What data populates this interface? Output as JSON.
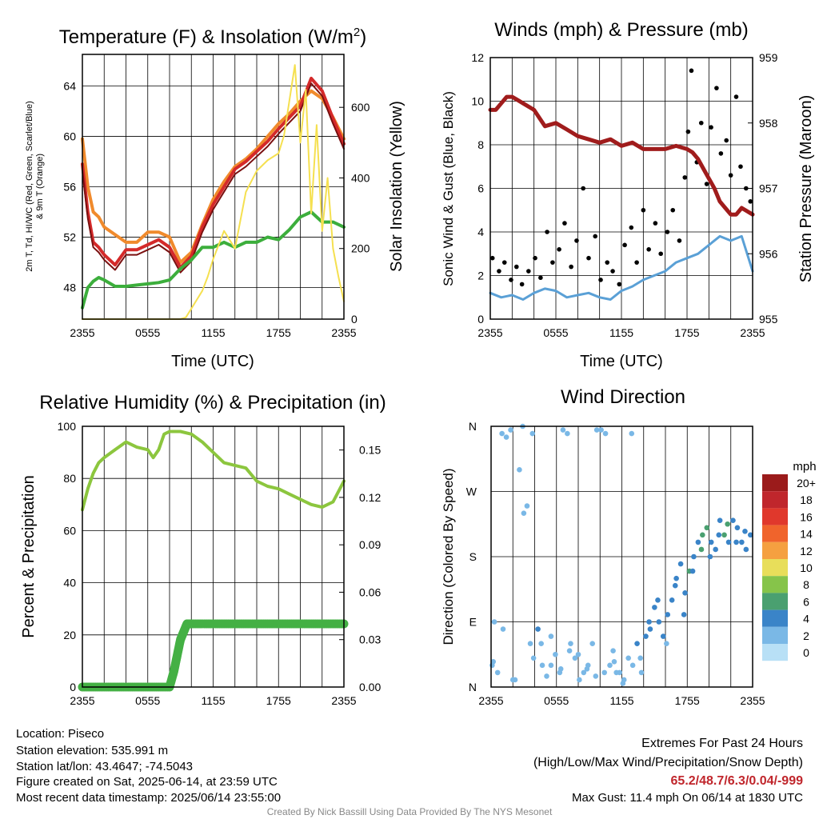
{
  "colors": {
    "temp": "#d42a2a",
    "dewpoint": "#3cae3c",
    "heat_index": "#7a1010",
    "temp9m": "#f08a2c",
    "insolation": "#f5e050",
    "wind": "#5aa0d6",
    "gust": "#000000",
    "pressure": "#a01c1c",
    "rh": "#8cc63e",
    "precip": "#44b044",
    "extremes": "#c0262c",
    "credit": "#888888"
  },
  "footer": {
    "location": "Location: Piseco",
    "elevation": "Station elevation: 535.991 m",
    "latlon": "Station lat/lon: 43.4647; -74.5043",
    "created": "Figure created on Sat, 2025-06-14, at 23:59 UTC",
    "recent": "Most recent data timestamp: 2025/06/14 23:55:00",
    "extremes_title": "Extremes For Past 24 Hours",
    "extremes_sub": "(High/Low/Max Wind/Precipitation/Snow Depth)",
    "extremes_values": "65.2/48.7/6.3/0.04/-999",
    "max_gust": "Max Gust: 11.4 mph On 06/14 at 1830 UTC",
    "credit": "Created By Nick Bassill Using Data Provided By The NYS Mesonet"
  },
  "chart_data": [
    {
      "type": "line",
      "title": "Temperature (F) & Insolation (W/m2)",
      "title_main": "Temperature (F) & Insolation (W/m",
      "title_sup": "2",
      "title_end": ")",
      "xlabel": "Time (UTC)",
      "ylabel_line1": "2m T, Td, HI/WC (Red, Green, Scarlet/Blue)",
      "ylabel_line2": "& 9m T (Orange)",
      "y2label": "Solar Insolation (Yellow)",
      "x_ticks": [
        "2355",
        "0555",
        "1155",
        "1755",
        "2355"
      ],
      "ylim": [
        45.5,
        66.5
      ],
      "y_ticks": [
        48,
        52,
        56,
        60,
        64
      ],
      "y2lim": [
        0,
        750
      ],
      "y2_ticks": [
        0,
        200,
        400,
        600
      ],
      "grid": true,
      "series": [
        {
          "key": "temp9m",
          "axis": "y",
          "x": [
            0,
            0.5,
            1,
            1.5,
            2,
            3,
            4,
            5,
            6,
            7,
            8,
            9,
            10,
            11,
            12,
            13,
            14,
            15,
            16,
            17,
            18,
            19,
            20,
            21,
            22,
            23,
            24
          ],
          "values": [
            59.8,
            56,
            54,
            53.6,
            52.8,
            52.2,
            51.6,
            51.6,
            52.4,
            52.4,
            52,
            50,
            50.8,
            53,
            55,
            56.4,
            57.6,
            58.2,
            59,
            60,
            61,
            61.8,
            62.8,
            63.6,
            63,
            61.5,
            59.8
          ]
        },
        {
          "key": "temp",
          "axis": "y",
          "x": [
            0,
            0.5,
            1,
            1.5,
            2,
            3,
            4,
            5,
            6,
            7,
            8,
            9,
            10,
            11,
            12,
            13,
            14,
            15,
            16,
            17,
            18,
            19,
            20,
            21,
            22,
            23,
            24
          ],
          "values": [
            57.8,
            54,
            51.6,
            51.2,
            50.6,
            49.8,
            51,
            51,
            51.4,
            51.8,
            51.2,
            49.6,
            50.5,
            52.8,
            54.6,
            56,
            57.4,
            58,
            58.8,
            59.6,
            60.6,
            61.5,
            62.4,
            64.6,
            63.6,
            61.4,
            59.4
          ]
        },
        {
          "key": "heat_index",
          "axis": "y",
          "x": [
            0,
            0.5,
            1,
            1.5,
            2,
            3,
            4,
            5,
            6,
            7,
            8,
            9,
            10,
            11,
            12,
            13,
            14,
            15,
            16,
            17,
            18,
            19,
            20,
            21,
            22,
            23,
            24
          ],
          "values": [
            57.3,
            53.5,
            51.2,
            50.8,
            50.2,
            49.4,
            50.6,
            50.6,
            51,
            51.4,
            50.8,
            49.2,
            50.1,
            52.4,
            54.2,
            55.6,
            57,
            57.6,
            58.4,
            59.2,
            60.2,
            61.1,
            62,
            64.2,
            63.2,
            61,
            59
          ]
        },
        {
          "key": "dewpoint",
          "axis": "y",
          "x": [
            0,
            0.5,
            1,
            1.5,
            2,
            3,
            4,
            5,
            6,
            7,
            8,
            9,
            10,
            11,
            12,
            13,
            14,
            15,
            16,
            17,
            18,
            19,
            20,
            21,
            22,
            23,
            24
          ],
          "values": [
            46.4,
            48,
            48.5,
            48.8,
            48.6,
            48.1,
            48.1,
            48.2,
            48.3,
            48.4,
            48.6,
            49.5,
            50.2,
            51.2,
            51.2,
            51.6,
            51.2,
            51.6,
            51.6,
            52,
            51.8,
            52.6,
            53.6,
            54,
            53.2,
            53.2,
            52.8
          ]
        },
        {
          "key": "insolation",
          "axis": "y2",
          "x": [
            0,
            2,
            4,
            6,
            8,
            9,
            9.5,
            10,
            11,
            11.5,
            12,
            13,
            14,
            15,
            16,
            17,
            18,
            18.5,
            19,
            19.5,
            20,
            20.5,
            21,
            21.5,
            22,
            22.5,
            23,
            23.5,
            24
          ],
          "values": [
            0,
            0,
            0,
            0,
            0,
            0,
            5,
            30,
            80,
            120,
            170,
            250,
            200,
            360,
            420,
            450,
            470,
            520,
            620,
            720,
            500,
            650,
            300,
            550,
            250,
            400,
            200,
            120,
            50
          ]
        }
      ]
    },
    {
      "type": "line",
      "title": "Winds (mph) & Pressure (mb)",
      "xlabel": "Time (UTC)",
      "ylabel": "Sonic Wind & Gust (Blue, Black)",
      "y2label": "Station Pressure (Maroon)",
      "x_ticks": [
        "2355",
        "0555",
        "1155",
        "1755",
        "2355"
      ],
      "ylim": [
        0,
        12
      ],
      "y_ticks": [
        0,
        2,
        4,
        6,
        8,
        10,
        12
      ],
      "y2lim": [
        955,
        959
      ],
      "y2_ticks": [
        955,
        956,
        957,
        958,
        959
      ],
      "grid": true,
      "series": [
        {
          "key": "wind",
          "axis": "y",
          "x": [
            0,
            1,
            2,
            3,
            4,
            5,
            6,
            7,
            8,
            9,
            10,
            11,
            12,
            13,
            14,
            15,
            16,
            17,
            18,
            19,
            20,
            21,
            22,
            23,
            24
          ],
          "values": [
            1.2,
            1.0,
            1.1,
            0.9,
            1.2,
            1.4,
            1.3,
            1.0,
            1.1,
            1.2,
            1.0,
            0.9,
            1.3,
            1.5,
            1.8,
            2.0,
            2.2,
            2.6,
            2.8,
            3.0,
            3.4,
            3.8,
            3.6,
            3.8,
            2.2
          ]
        },
        {
          "key": "gust",
          "axis": "y",
          "type": "scatter",
          "x": [
            0.2,
            0.8,
            1.3,
            1.9,
            2.4,
            2.9,
            3.5,
            4.1,
            4.6,
            5.2,
            5.7,
            6.3,
            6.8,
            7.4,
            7.9,
            8.5,
            9.0,
            9.6,
            10.1,
            10.7,
            11.2,
            11.8,
            12.3,
            12.9,
            13.4,
            14.0,
            14.5,
            15.1,
            15.6,
            16.2,
            16.7,
            17.3,
            17.8,
            18.1,
            18.4,
            18.9,
            19.3,
            19.8,
            20.2,
            20.7,
            21.1,
            21.6,
            22.0,
            22.5,
            22.9,
            23.4,
            23.8
          ],
          "values": [
            2.8,
            2.2,
            2.6,
            1.8,
            2.4,
            1.6,
            2.2,
            2.8,
            1.9,
            4.0,
            2.6,
            3.2,
            4.4,
            2.4,
            3.6,
            6.0,
            2.8,
            3.8,
            1.8,
            2.6,
            2.2,
            1.6,
            3.4,
            4.2,
            2.6,
            5.0,
            3.2,
            4.4,
            3.0,
            4.0,
            5.0,
            3.6,
            6.5,
            8.6,
            11.4,
            7.2,
            9.0,
            6.2,
            8.8,
            10.6,
            7.6,
            8.2,
            6.6,
            10.2,
            7.0,
            6.0,
            5.4
          ]
        },
        {
          "key": "pressure",
          "axis": "y2",
          "x": [
            0,
            0.5,
            1,
            1.5,
            2,
            2.5,
            3,
            4,
            5,
            6,
            7,
            8,
            9,
            10,
            11,
            12,
            13,
            14,
            15,
            16,
            17,
            18,
            18.5,
            19,
            19.5,
            20,
            20.5,
            21,
            21.5,
            22,
            22.5,
            23,
            23.5,
            24
          ],
          "values": [
            958.2,
            958.2,
            958.3,
            958.4,
            958.4,
            958.35,
            958.3,
            958.2,
            957.95,
            958.0,
            957.9,
            957.8,
            957.75,
            957.7,
            957.75,
            957.65,
            957.7,
            957.6,
            957.6,
            957.6,
            957.65,
            957.6,
            957.55,
            957.45,
            957.3,
            957.15,
            957.0,
            956.8,
            956.7,
            956.6,
            956.6,
            956.7,
            956.65,
            956.6
          ]
        }
      ]
    },
    {
      "type": "line",
      "title": "Relative Humidity (%) & Precipitation (in)",
      "xlabel": "",
      "ylabel": "Percent & Precipitation",
      "x_ticks": [
        "2355",
        "0555",
        "1155",
        "1755",
        "2355"
      ],
      "ylim": [
        0,
        100
      ],
      "y_ticks": [
        0,
        20,
        40,
        60,
        80,
        100
      ],
      "y2lim": [
        0,
        0.165
      ],
      "y2_ticks": [
        "0.00",
        "0.03",
        "0.06",
        "0.09",
        "0.12",
        "0.15"
      ],
      "grid": true,
      "series": [
        {
          "key": "rh",
          "axis": "y",
          "x": [
            0,
            0.5,
            1,
            1.5,
            2,
            3,
            4,
            5,
            6,
            6.5,
            7,
            7.5,
            8,
            9,
            10,
            11,
            12,
            13,
            14,
            15,
            16,
            17,
            18,
            19,
            20,
            21,
            22,
            23,
            24
          ],
          "values": [
            68,
            76,
            82,
            86,
            88,
            91,
            94,
            92,
            91,
            88,
            91,
            97,
            98,
            98,
            97,
            94,
            90,
            86,
            85,
            84,
            79,
            77,
            76,
            74,
            72,
            70,
            69,
            71,
            79
          ]
        },
        {
          "key": "precip",
          "axis": "y2",
          "x": [
            0,
            2,
            4,
            6,
            8,
            8.4,
            8.7,
            9.0,
            9.3,
            9.6,
            10,
            12,
            14,
            16,
            18,
            20,
            22,
            24
          ],
          "values": [
            0,
            0,
            0,
            0,
            0,
            0.01,
            0.02,
            0.03,
            0.035,
            0.04,
            0.04,
            0.04,
            0.04,
            0.04,
            0.04,
            0.04,
            0.04,
            0.04
          ]
        }
      ]
    },
    {
      "type": "scatter",
      "title": "Wind Direction",
      "ylabel": "Direction (Colored By Speed)",
      "x_ticks": [
        "2355",
        "0555",
        "1155",
        "1755",
        "2355"
      ],
      "y_tick_labels": [
        "N",
        "E",
        "S",
        "W",
        "N"
      ],
      "ylim": [
        0,
        360
      ],
      "grid": true,
      "legend_title": "mph",
      "legend_labels": [
        "20+",
        "18",
        "16",
        "14",
        "12",
        "10",
        "8",
        "6",
        "4",
        "2",
        "0"
      ],
      "legend_colors": [
        "#9b1b1b",
        "#c0262c",
        "#e0382c",
        "#f0642c",
        "#f5a040",
        "#e8de5a",
        "#86c44a",
        "#4aa070",
        "#3a84c8",
        "#7ab8e6",
        "#b8e0f6"
      ],
      "points": {
        "x": [
          0.1,
          0.3,
          0.6,
          1.0,
          1.4,
          1.8,
          2.2,
          2.6,
          3.0,
          3.3,
          3.6,
          3.9,
          4.3,
          4.7,
          5.1,
          5.5,
          5.9,
          6.3,
          6.6,
          7.0,
          7.3,
          7.7,
          8.1,
          8.5,
          8.9,
          9.3,
          9.7,
          10.1,
          10.5,
          10.9,
          11.2,
          11.5,
          11.8,
          12.2,
          12.6,
          13.0,
          13.4,
          13.8,
          14.2,
          14.6,
          15.0,
          15.4,
          15.8,
          16.2,
          16.6,
          17.0,
          17.4,
          17.8,
          18.2,
          18.6,
          19.0,
          19.4,
          19.8,
          20.2,
          20.6,
          21.0,
          21.4,
          21.8,
          22.2,
          22.6,
          23.0,
          23.4,
          23.8,
          0.2,
          1.1,
          2.0,
          2.9,
          3.8,
          4.6,
          5.5,
          6.4,
          7.2,
          8.0,
          8.8,
          9.6,
          10.4,
          11.3,
          12.1,
          12.9,
          13.7,
          14.5,
          15.3,
          16.1,
          16.9,
          17.7,
          18.5,
          19.3,
          20.1,
          20.9,
          21.7,
          22.5,
          23.3
        ],
        "dir": [
          30,
          90,
          20,
          350,
          345,
          355,
          10,
          300,
          240,
          250,
          60,
          40,
          80,
          30,
          15,
          70,
          45,
          20,
          355,
          350,
          60,
          40,
          10,
          20,
          30,
          60,
          355,
          355,
          350,
          30,
          50,
          20,
          20,
          10,
          40,
          30,
          60,
          20,
          70,
          80,
          110,
          90,
          70,
          100,
          120,
          150,
          170,
          130,
          160,
          180,
          200,
          210,
          220,
          200,
          190,
          230,
          210,
          200,
          230,
          220,
          200,
          190,
          210,
          35,
          80,
          10,
          360,
          350,
          60,
          30,
          25,
          50,
          45,
          25,
          15,
          20,
          35,
          5,
          350,
          40,
          90,
          120,
          60,
          140,
          100,
          160,
          190,
          180,
          210,
          225,
          200,
          215
        ],
        "spd": [
          1,
          2,
          1,
          1,
          2,
          1,
          1,
          1,
          1,
          2,
          2,
          1,
          3,
          2,
          1,
          1,
          2,
          1,
          1,
          2,
          2,
          1,
          1,
          1,
          2,
          2,
          1,
          2,
          1,
          2,
          2,
          1,
          1,
          2,
          1,
          2,
          3,
          1,
          3,
          3,
          4,
          3,
          3,
          4,
          4,
          3,
          4,
          3,
          5,
          4,
          4,
          6,
          5,
          4,
          3,
          4,
          5,
          4,
          3,
          4,
          4,
          3,
          4,
          1,
          2,
          1,
          1,
          1,
          2,
          1,
          1,
          1,
          2,
          1,
          1,
          1,
          2,
          1,
          1,
          1,
          3,
          3,
          2,
          3,
          3,
          4,
          5,
          4,
          3,
          6,
          4,
          3
        ]
      }
    }
  ]
}
